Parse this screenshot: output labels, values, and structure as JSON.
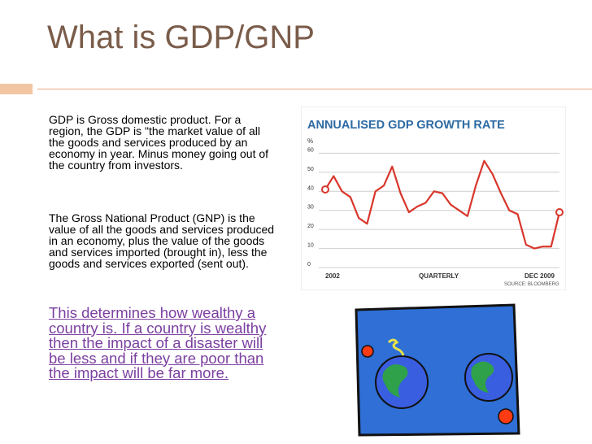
{
  "slide": {
    "title": "What is GDP/GNP",
    "paragraph1": " GDP is Gross domestic product. For a region, the GDP is \"the market value of all the goods and services produced by an economy in  year. Minus money going out of the country from investors.",
    "paragraph2": "The Gross National Product (GNP) is the value of all the goods and services produced in an economy, plus the value of the goods and services imported (brought in), less the goods and services exported (sent out).",
    "link": "This determines how wealthy a country is. If a country is wealthy then the impact of a disaster will be less and if they are poor than the impact will be far more.",
    "accent_color": "#7a5c4a",
    "link_color": "#7b3fa0"
  },
  "chart_data": {
    "type": "line",
    "title": "ANNUALISED GDP GROWTH RATE",
    "ylabel": "%",
    "ylim": [
      0,
      70
    ],
    "yticks": [
      0,
      10,
      20,
      30,
      40,
      50,
      60
    ],
    "xlabel": "QUARTERLY",
    "x_start_label": "2002",
    "x_end_label": "DEC 2009",
    "source": "SOURCE: BLOOMBERG",
    "series_color": "#d9362b",
    "values": [
      41,
      48,
      40,
      37,
      26,
      23,
      40,
      43,
      53,
      39,
      29,
      32,
      34,
      40,
      39,
      33,
      30,
      27,
      43,
      56,
      49,
      39,
      30,
      28,
      12,
      10,
      11,
      11,
      29
    ]
  },
  "image": {
    "description_icon": "globes-clipart-icon"
  }
}
